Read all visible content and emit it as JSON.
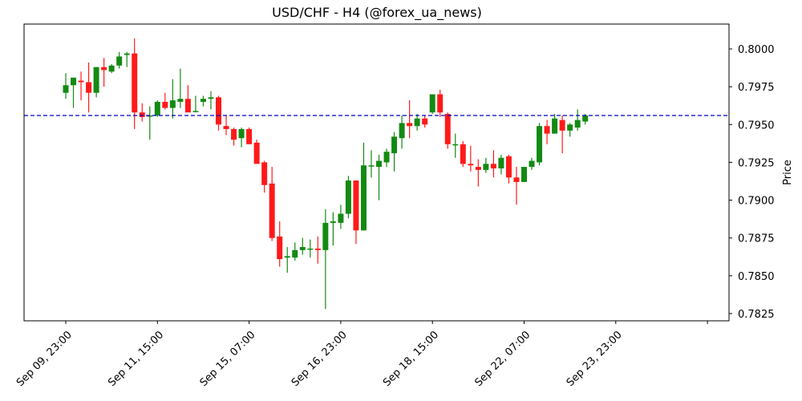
{
  "chart_data": {
    "type": "candlestick",
    "title": "USD/CHF - H4 (@forex_ua_news)",
    "xlabel": "",
    "ylabel": "Price",
    "ylim": [
      0.782,
      0.8017
    ],
    "yticks": [
      "0.8000",
      "0.7975",
      "0.7950",
      "0.7925",
      "0.7900",
      "0.7875",
      "0.7850",
      "0.7825"
    ],
    "xticks": [
      "Sep 09, 23:00",
      "Sep 11, 15:00",
      "Sep 15, 07:00",
      "Sep 16, 23:00",
      "Sep 18, 15:00",
      "Sep 22, 07:00",
      "Sep 23, 23:00",
      ""
    ],
    "xtick_indices": [
      0,
      12,
      24,
      36,
      48,
      60,
      72,
      84
    ],
    "reference_line": {
      "value": 0.7956,
      "color": "#0000cc",
      "style": "dashed"
    },
    "up_color": "#138a13",
    "down_color": "#ff1a1a",
    "candles": [
      {
        "o": 0.7971,
        "h": 0.7984,
        "l": 0.7967,
        "c": 0.7976
      },
      {
        "o": 0.7976,
        "h": 0.7981,
        "l": 0.7961,
        "c": 0.7981
      },
      {
        "o": 0.7979,
        "h": 0.7985,
        "l": 0.7966,
        "c": 0.7978
      },
      {
        "o": 0.7978,
        "h": 0.7991,
        "l": 0.7958,
        "c": 0.7971
      },
      {
        "o": 0.7971,
        "h": 0.7988,
        "l": 0.7968,
        "c": 0.7988
      },
      {
        "o": 0.7988,
        "h": 0.7994,
        "l": 0.7975,
        "c": 0.7986
      },
      {
        "o": 0.7985,
        "h": 0.799,
        "l": 0.7984,
        "c": 0.7989
      },
      {
        "o": 0.7989,
        "h": 0.7998,
        "l": 0.7987,
        "c": 0.7995
      },
      {
        "o": 0.7996,
        "h": 0.7998,
        "l": 0.7988,
        "c": 0.7997
      },
      {
        "o": 0.7997,
        "h": 0.8007,
        "l": 0.7947,
        "c": 0.7958
      },
      {
        "o": 0.7958,
        "h": 0.7964,
        "l": 0.7952,
        "c": 0.7955
      },
      {
        "o": 0.7956,
        "h": 0.7962,
        "l": 0.794,
        "c": 0.7956
      },
      {
        "o": 0.7956,
        "h": 0.7966,
        "l": 0.7955,
        "c": 0.7965
      },
      {
        "o": 0.7965,
        "h": 0.7971,
        "l": 0.796,
        "c": 0.7961
      },
      {
        "o": 0.7961,
        "h": 0.798,
        "l": 0.7954,
        "c": 0.7966
      },
      {
        "o": 0.7965,
        "h": 0.7987,
        "l": 0.7961,
        "c": 0.7967
      },
      {
        "o": 0.7967,
        "h": 0.7976,
        "l": 0.7959,
        "c": 0.7958
      },
      {
        "o": 0.7959,
        "h": 0.7969,
        "l": 0.7958,
        "c": 0.7959
      },
      {
        "o": 0.7965,
        "h": 0.7969,
        "l": 0.7962,
        "c": 0.7967
      },
      {
        "o": 0.7967,
        "h": 0.7972,
        "l": 0.796,
        "c": 0.7968
      },
      {
        "o": 0.7968,
        "h": 0.7969,
        "l": 0.7946,
        "c": 0.795
      },
      {
        "o": 0.7949,
        "h": 0.7956,
        "l": 0.7943,
        "c": 0.7947
      },
      {
        "o": 0.7947,
        "h": 0.7948,
        "l": 0.7936,
        "c": 0.794
      },
      {
        "o": 0.7941,
        "h": 0.7948,
        "l": 0.7935,
        "c": 0.7947
      },
      {
        "o": 0.7947,
        "h": 0.7948,
        "l": 0.7937,
        "c": 0.7937
      },
      {
        "o": 0.7938,
        "h": 0.794,
        "l": 0.7924,
        "c": 0.7924
      },
      {
        "o": 0.7925,
        "h": 0.7926,
        "l": 0.7905,
        "c": 0.791
      },
      {
        "o": 0.7911,
        "h": 0.7922,
        "l": 0.7873,
        "c": 0.7875
      },
      {
        "o": 0.7876,
        "h": 0.7886,
        "l": 0.7856,
        "c": 0.7861
      },
      {
        "o": 0.7862,
        "h": 0.7869,
        "l": 0.7852,
        "c": 0.7863
      },
      {
        "o": 0.7862,
        "h": 0.7872,
        "l": 0.786,
        "c": 0.7867
      },
      {
        "o": 0.7867,
        "h": 0.7875,
        "l": 0.7864,
        "c": 0.7869
      },
      {
        "o": 0.7868,
        "h": 0.7874,
        "l": 0.7862,
        "c": 0.7868
      },
      {
        "o": 0.7868,
        "h": 0.7876,
        "l": 0.7858,
        "c": 0.7867
      },
      {
        "o": 0.7867,
        "h": 0.7894,
        "l": 0.7828,
        "c": 0.7885
      },
      {
        "o": 0.7885,
        "h": 0.7892,
        "l": 0.787,
        "c": 0.7886
      },
      {
        "o": 0.7885,
        "h": 0.7897,
        "l": 0.7881,
        "c": 0.7891
      },
      {
        "o": 0.7891,
        "h": 0.7916,
        "l": 0.7888,
        "c": 0.7913
      },
      {
        "o": 0.7913,
        "h": 0.7913,
        "l": 0.7871,
        "c": 0.788
      },
      {
        "o": 0.788,
        "h": 0.7938,
        "l": 0.788,
        "c": 0.7923
      },
      {
        "o": 0.7923,
        "h": 0.7933,
        "l": 0.7915,
        "c": 0.7923
      },
      {
        "o": 0.7922,
        "h": 0.793,
        "l": 0.79,
        "c": 0.7926
      },
      {
        "o": 0.7925,
        "h": 0.7934,
        "l": 0.7922,
        "c": 0.7932
      },
      {
        "o": 0.7931,
        "h": 0.7945,
        "l": 0.7919,
        "c": 0.7942
      },
      {
        "o": 0.7941,
        "h": 0.7956,
        "l": 0.7934,
        "c": 0.7951
      },
      {
        "o": 0.7951,
        "h": 0.7966,
        "l": 0.7941,
        "c": 0.7949
      },
      {
        "o": 0.7949,
        "h": 0.7957,
        "l": 0.7946,
        "c": 0.7954
      },
      {
        "o": 0.7954,
        "h": 0.7956,
        "l": 0.7948,
        "c": 0.795
      },
      {
        "o": 0.7958,
        "h": 0.797,
        "l": 0.7957,
        "c": 0.797
      },
      {
        "o": 0.797,
        "h": 0.7973,
        "l": 0.7955,
        "c": 0.7958
      },
      {
        "o": 0.7957,
        "h": 0.7958,
        "l": 0.7934,
        "c": 0.7937
      },
      {
        "o": 0.7937,
        "h": 0.7944,
        "l": 0.7928,
        "c": 0.7937
      },
      {
        "o": 0.7937,
        "h": 0.7939,
        "l": 0.7922,
        "c": 0.7924
      },
      {
        "o": 0.7924,
        "h": 0.7936,
        "l": 0.7919,
        "c": 0.7923
      },
      {
        "o": 0.7922,
        "h": 0.7927,
        "l": 0.7909,
        "c": 0.792
      },
      {
        "o": 0.792,
        "h": 0.7928,
        "l": 0.7918,
        "c": 0.7924
      },
      {
        "o": 0.7924,
        "h": 0.7933,
        "l": 0.7915,
        "c": 0.7921
      },
      {
        "o": 0.7921,
        "h": 0.793,
        "l": 0.7917,
        "c": 0.7928
      },
      {
        "o": 0.7929,
        "h": 0.793,
        "l": 0.7911,
        "c": 0.7915
      },
      {
        "o": 0.7915,
        "h": 0.7922,
        "l": 0.7897,
        "c": 0.7912
      },
      {
        "o": 0.7912,
        "h": 0.7922,
        "l": 0.7912,
        "c": 0.7922
      },
      {
        "o": 0.7922,
        "h": 0.7928,
        "l": 0.792,
        "c": 0.7926
      },
      {
        "o": 0.7925,
        "h": 0.7951,
        "l": 0.7923,
        "c": 0.7949
      },
      {
        "o": 0.7949,
        "h": 0.7953,
        "l": 0.7937,
        "c": 0.7944
      },
      {
        "o": 0.7944,
        "h": 0.7957,
        "l": 0.7944,
        "c": 0.7954
      },
      {
        "o": 0.7953,
        "h": 0.7956,
        "l": 0.7931,
        "c": 0.7946
      },
      {
        "o": 0.7946,
        "h": 0.7951,
        "l": 0.7942,
        "c": 0.795
      },
      {
        "o": 0.7948,
        "h": 0.796,
        "l": 0.7946,
        "c": 0.7953
      },
      {
        "o": 0.7952,
        "h": 0.7957,
        "l": 0.795,
        "c": 0.7956
      }
    ],
    "grid": false,
    "legend": null
  }
}
